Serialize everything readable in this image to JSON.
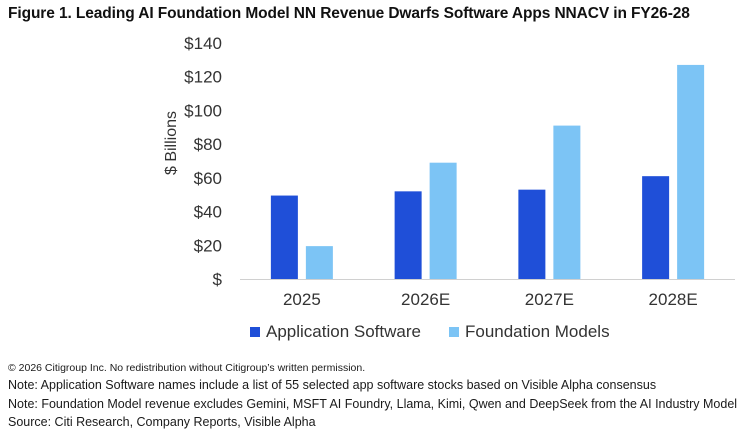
{
  "title": "Figure 1. Leading AI Foundation Model NN Revenue Dwarfs Software Apps NNACV in FY26-28",
  "chart_data": {
    "type": "bar",
    "title": "Figure 1. Leading AI Foundation Model NN Revenue Dwarfs Software Apps NNACV in FY26-28",
    "categories": [
      "2025",
      "2026E",
      "2027E",
      "2028E"
    ],
    "series": [
      {
        "name": "Application Software",
        "color": "#1f4fd8",
        "values": [
          49.5,
          52,
          53,
          61
        ]
      },
      {
        "name": "Foundation Models",
        "color": "#7cc4f5",
        "values": [
          19.5,
          69,
          91,
          127
        ]
      }
    ],
    "xlabel": "",
    "ylabel": "$ Billions",
    "ylim": [
      0,
      140
    ],
    "yticks": [
      0,
      20,
      40,
      60,
      80,
      100,
      120,
      140
    ],
    "ytick_labels": [
      "$",
      "$20",
      "$40",
      "$60",
      "$80",
      "$100",
      "$120",
      "$140"
    ],
    "legend_position": "bottom",
    "grid": false
  },
  "footer": {
    "copyright": "© 2026 Citigroup Inc. No redistribution without Citigroup’s written permission.",
    "note1": "Note: Application Software names include a list of 55 selected app software stocks based on Visible Alpha consensus",
    "note2": "Note: Foundation Model revenue excludes Gemini, MSFT AI Foundry, Llama, Kimi, Qwen and DeepSeek from the AI Industry Model",
    "source": "Source: Citi Research, Company Reports, Visible Alpha"
  }
}
